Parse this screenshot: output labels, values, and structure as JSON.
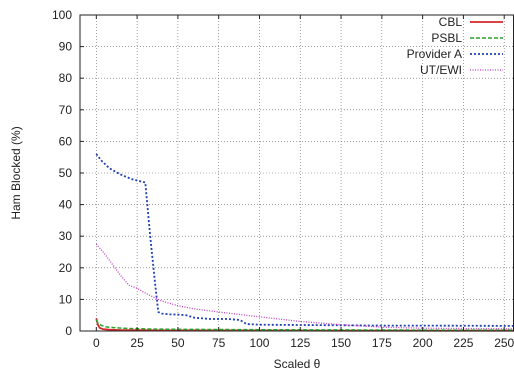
{
  "chart_data": {
    "type": "line",
    "title": "",
    "xlabel": "Scaled θ",
    "ylabel": "Ham Blocked (%)",
    "xlim": [
      -10,
      256
    ],
    "ylim": [
      0,
      100
    ],
    "xticks": [
      0,
      25,
      50,
      75,
      100,
      125,
      150,
      175,
      200,
      225,
      250
    ],
    "yticks": [
      0,
      10,
      20,
      30,
      40,
      50,
      60,
      70,
      80,
      90,
      100
    ],
    "grid": true,
    "legend_position": "top-right",
    "series": [
      {
        "name": "CBL",
        "color": "#d62728",
        "dash": "solid",
        "x": [
          0,
          1,
          2,
          4,
          8,
          15,
          25,
          40,
          60,
          100,
          150,
          200,
          256
        ],
        "y": [
          4.0,
          2.0,
          1.0,
          0.6,
          0.4,
          0.3,
          0.25,
          0.2,
          0.2,
          0.15,
          0.1,
          0.1,
          0.1
        ]
      },
      {
        "name": "PSBL",
        "color": "#2ca02c",
        "dash": "dashed",
        "x": [
          0,
          1,
          3,
          6,
          12,
          20,
          35,
          60,
          100,
          150,
          200,
          256
        ],
        "y": [
          3.5,
          2.5,
          1.8,
          1.3,
          1.0,
          0.8,
          0.6,
          0.5,
          0.4,
          0.35,
          0.3,
          0.3
        ]
      },
      {
        "name": "Provider A",
        "color": "#1f3fb4",
        "dash": "dotted",
        "x": [
          0,
          3,
          8,
          15,
          22,
          30,
          33,
          36,
          38,
          40,
          45,
          50,
          55,
          60,
          70,
          80,
          88,
          92,
          100,
          150,
          175,
          200,
          256
        ],
        "y": [
          56,
          54,
          51.5,
          49.5,
          48,
          47,
          30,
          15,
          6,
          5.5,
          5.3,
          5.2,
          5.0,
          4.2,
          3.8,
          3.8,
          3.5,
          2.2,
          2.0,
          1.8,
          1.7,
          1.7,
          1.6
        ]
      },
      {
        "name": "UT/EWI",
        "color": "#c03cc0",
        "dash": "dotted-fine",
        "x": [
          0,
          5,
          10,
          15,
          20,
          25,
          30,
          40,
          50,
          60,
          75,
          100,
          125,
          150,
          175,
          200,
          225,
          256
        ],
        "y": [
          27.5,
          24.5,
          21,
          17.5,
          14.5,
          13.5,
          12,
          9.5,
          8.0,
          7.0,
          6.0,
          4.5,
          3.0,
          2.0,
          1.2,
          0.9,
          0.8,
          0.7
        ]
      }
    ]
  }
}
